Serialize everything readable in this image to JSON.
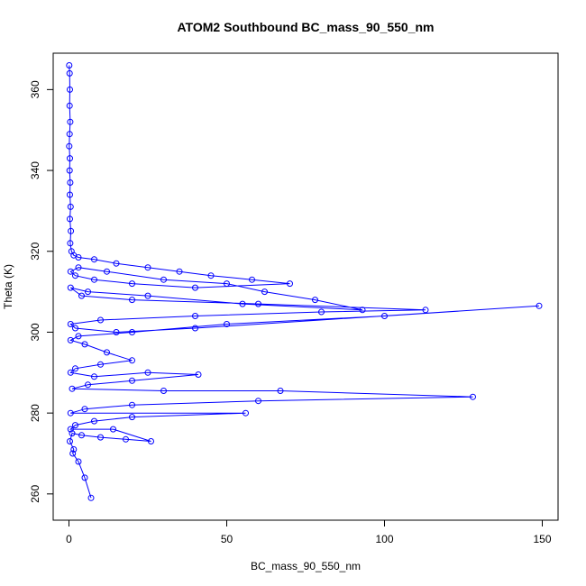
{
  "chart_data": {
    "type": "line",
    "title": "ATOM2 Southbound BC_mass_90_550_nm",
    "xlabel": "BC_mass_90_550_nm",
    "ylabel": "Theta (K)",
    "xlim": [
      -5,
      155
    ],
    "ylim": [
      253.5,
      369
    ],
    "xticks": [
      0,
      50,
      100,
      150
    ],
    "yticks": [
      260,
      280,
      300,
      320,
      340,
      360
    ],
    "grid": false,
    "legend": "none",
    "marker": "open-circle",
    "colors": {
      "series": "#0000ff",
      "axis": "#000000"
    },
    "series": [
      {
        "values": [
          [
            0.1,
            366
          ],
          [
            0.2,
            364
          ],
          [
            0.3,
            360
          ],
          [
            0.2,
            356
          ],
          [
            0.4,
            352
          ],
          [
            0.2,
            349
          ],
          [
            0.1,
            346
          ],
          [
            0.3,
            343
          ],
          [
            0.2,
            340
          ],
          [
            0.4,
            337
          ],
          [
            0.3,
            334
          ],
          [
            0.5,
            331
          ],
          [
            0.3,
            328
          ],
          [
            0.6,
            325
          ],
          [
            0.4,
            322
          ],
          [
            0.8,
            320
          ],
          [
            1.5,
            319
          ],
          [
            3,
            318.5
          ],
          [
            8,
            318
          ],
          [
            15,
            317
          ],
          [
            25,
            316
          ],
          [
            35,
            315
          ],
          [
            45,
            314
          ],
          [
            58,
            313
          ],
          [
            70,
            312
          ],
          [
            40,
            311
          ],
          [
            20,
            312
          ],
          [
            8,
            313
          ],
          [
            2,
            314
          ],
          [
            0.5,
            315
          ],
          [
            3,
            316
          ],
          [
            12,
            315
          ],
          [
            30,
            313
          ],
          [
            50,
            312
          ],
          [
            62,
            310
          ],
          [
            78,
            308
          ],
          [
            93,
            305.5
          ],
          [
            55,
            307
          ],
          [
            25,
            309
          ],
          [
            6,
            310
          ],
          [
            0.5,
            311
          ],
          [
            4,
            309
          ],
          [
            20,
            308
          ],
          [
            60,
            307
          ],
          [
            113,
            305.5
          ],
          [
            80,
            305
          ],
          [
            40,
            304
          ],
          [
            10,
            303
          ],
          [
            0.5,
            302
          ],
          [
            2,
            301
          ],
          [
            15,
            300
          ],
          [
            40,
            301
          ],
          [
            149,
            306.5
          ],
          [
            100,
            304
          ],
          [
            50,
            302
          ],
          [
            20,
            300
          ],
          [
            3,
            299
          ],
          [
            0.5,
            298
          ],
          [
            5,
            297
          ],
          [
            12,
            295
          ],
          [
            20,
            293
          ],
          [
            10,
            292
          ],
          [
            2,
            291
          ],
          [
            0.5,
            290
          ],
          [
            8,
            289
          ],
          [
            25,
            290
          ],
          [
            41,
            289.5
          ],
          [
            20,
            288
          ],
          [
            6,
            287
          ],
          [
            1,
            286
          ],
          [
            30,
            285.5
          ],
          [
            67,
            285.5
          ],
          [
            128,
            284
          ],
          [
            60,
            283
          ],
          [
            20,
            282
          ],
          [
            5,
            281
          ],
          [
            0.5,
            280
          ],
          [
            56,
            280
          ],
          [
            20,
            279
          ],
          [
            8,
            278
          ],
          [
            2,
            277
          ],
          [
            0.5,
            276
          ],
          [
            14,
            276
          ],
          [
            26,
            273
          ],
          [
            18,
            273.5
          ],
          [
            10,
            274
          ],
          [
            4,
            274.5
          ],
          [
            1,
            275
          ],
          [
            0.3,
            273
          ],
          [
            1.5,
            271
          ],
          [
            1.2,
            270
          ],
          [
            3,
            268
          ],
          [
            5,
            264
          ],
          [
            7,
            259
          ]
        ]
      }
    ]
  }
}
